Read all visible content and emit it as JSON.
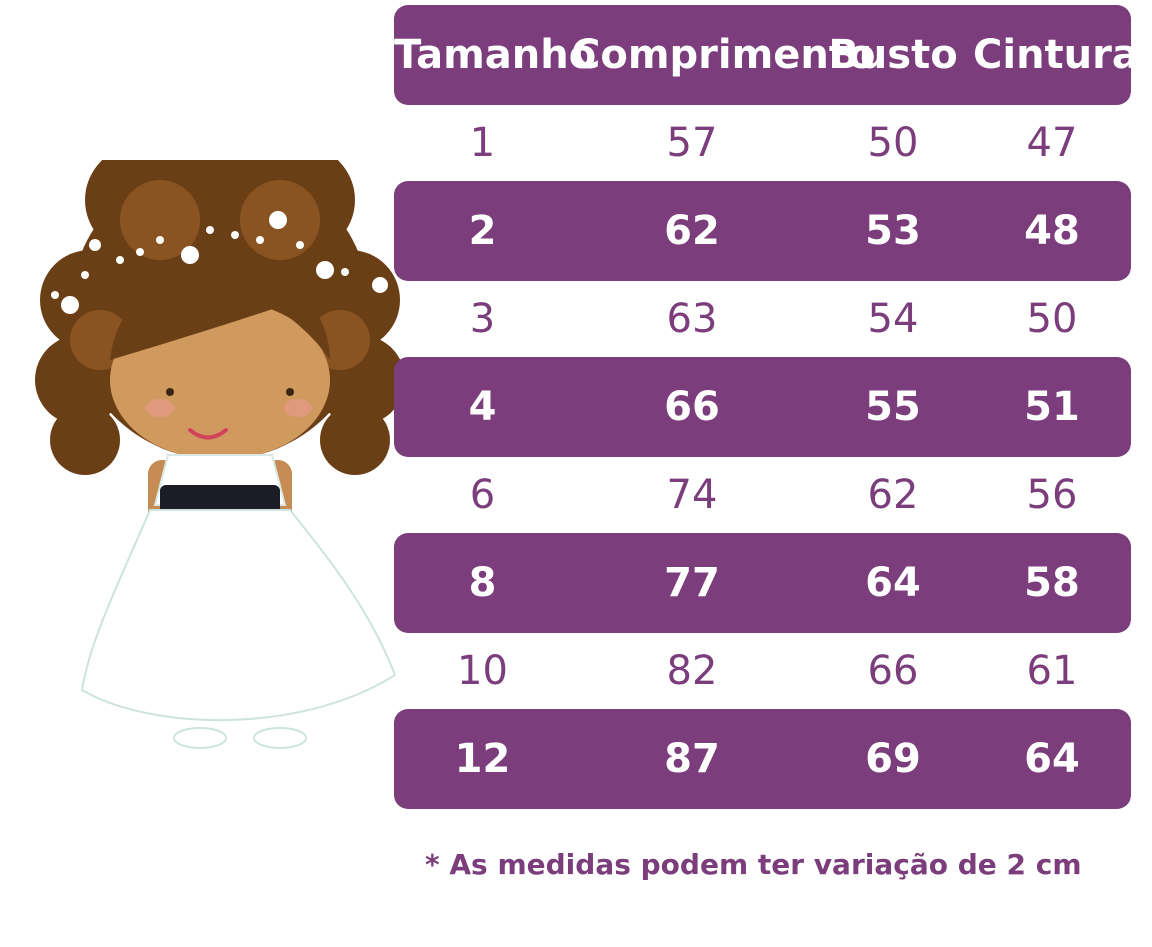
{
  "colors": {
    "accent": "#7b3d7c",
    "text_on_accent": "#ffffff"
  },
  "illustration": {
    "icon": "girl-in-white-dress-icon"
  },
  "table": {
    "headers": [
      "Tamanho",
      "Comprimento",
      "Busto",
      "Cintura"
    ],
    "rows": [
      [
        "1",
        "57",
        "50",
        "47"
      ],
      [
        "2",
        "62",
        "53",
        "48"
      ],
      [
        "3",
        "63",
        "54",
        "50"
      ],
      [
        "4",
        "66",
        "55",
        "51"
      ],
      [
        "6",
        "74",
        "62",
        "56"
      ],
      [
        "8",
        "77",
        "64",
        "58"
      ],
      [
        "10",
        "82",
        "66",
        "61"
      ],
      [
        "12",
        "87",
        "69",
        "64"
      ]
    ]
  },
  "footnote": "* As medidas podem ter variação de 2 cm"
}
